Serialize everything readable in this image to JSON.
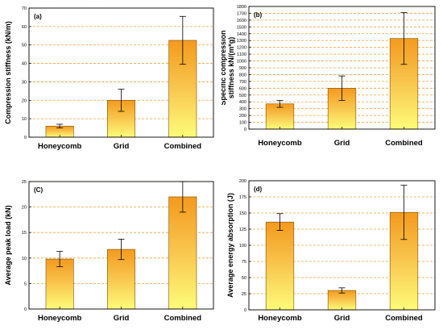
{
  "colors": {
    "bar_top": "#f39a1e",
    "bar_mid": "#f8c24a",
    "bar_bottom": "#fdfc7a",
    "grid": "#f2a23a",
    "axis": "#000000"
  },
  "chart_data": [
    {
      "type": "bar",
      "panel_label": "(a)",
      "ylabel": "Compression stiffness (kN/m)",
      "categories": [
        "Honeycomb",
        "Grid",
        "Combined"
      ],
      "values": [
        6,
        20,
        52.5
      ],
      "errors": [
        1,
        6,
        13
      ],
      "ylim": [
        0,
        70
      ],
      "yticks": [
        0,
        10,
        20,
        30,
        40,
        50,
        60,
        70
      ],
      "grid": true
    },
    {
      "type": "bar",
      "panel_label": "(b)",
      "ylabel": "Specific compression stiffness kN/(m*g)",
      "categories": [
        "Honeycomb",
        "Grid",
        "Combined"
      ],
      "values": [
        370,
        600,
        1330
      ],
      "errors": [
        50,
        180,
        380
      ],
      "ylim": [
        0,
        1800
      ],
      "yticks": [
        0,
        100,
        200,
        300,
        400,
        500,
        600,
        700,
        800,
        900,
        1000,
        1100,
        1200,
        1300,
        1400,
        1500,
        1600,
        1700,
        1800
      ],
      "grid": true
    },
    {
      "type": "bar",
      "panel_label": "(C)",
      "ylabel": "Average peak load (kN)",
      "categories": [
        "Honeycomb",
        "Grid",
        "Combined"
      ],
      "values": [
        9.8,
        11.7,
        22
      ],
      "errors": [
        1.5,
        2,
        3
      ],
      "ylim": [
        0,
        25
      ],
      "yticks": [
        0,
        5,
        10,
        15,
        20,
        25
      ],
      "grid": true
    },
    {
      "type": "bar",
      "panel_label": "(d)",
      "ylabel": "Average energy absorption (J)",
      "categories": [
        "Honeycomb",
        "Grid",
        "Combined"
      ],
      "values": [
        136,
        30,
        151
      ],
      "errors": [
        13,
        4,
        42
      ],
      "ylim": [
        0,
        200
      ],
      "yticks": [
        0,
        25,
        50,
        75,
        100,
        125,
        150,
        175,
        200
      ],
      "grid": true
    }
  ]
}
